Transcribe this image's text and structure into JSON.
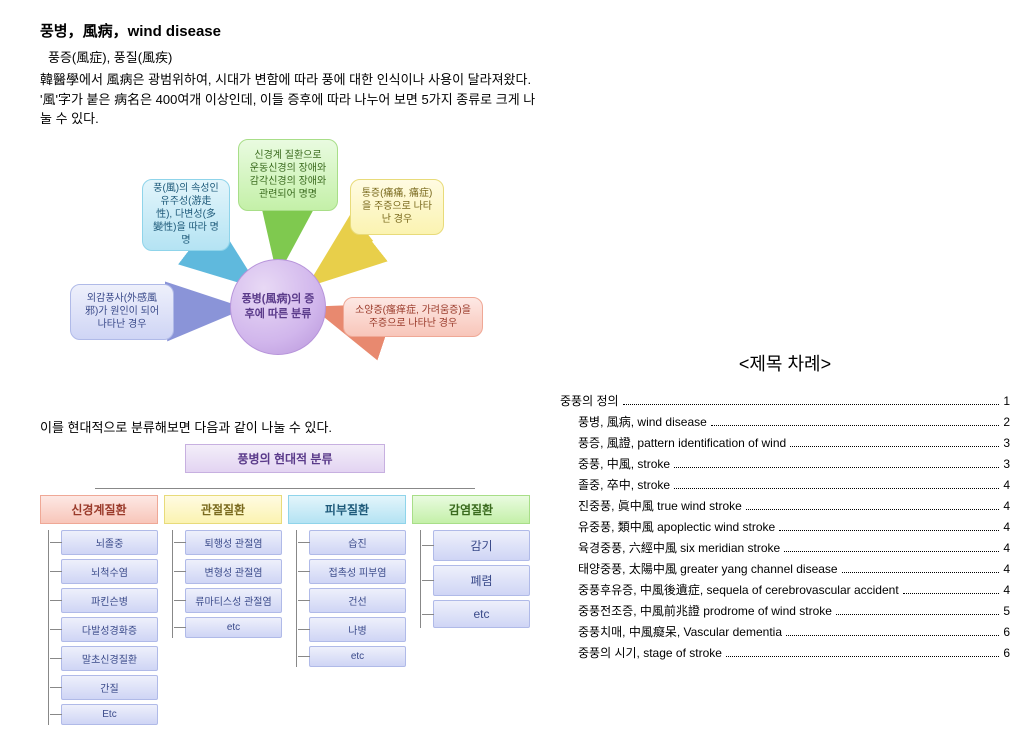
{
  "header": {
    "title_main": "풍병，風病，wind disease",
    "title_sub": "풍증(風症), 풍질(風疾)",
    "paragraph": "韓醫學에서 風病은 광범위하여, 시대가 변함에 따라 풍에 대한 인식이나 사용이 달라져왔다. '風'字가 붙은 病名은 400여개 이상인데, 이들 증후에 따라 나누어 보면 5가지 종류로 크게 나눌 수 있다."
  },
  "radial": {
    "center": "풍병(風病)의 증후에 따른 분류",
    "boxes": {
      "top": "신경계 질환으로 운동신경의 장애와 감각신경의 장애와 관련되어 명명",
      "topleft": "풍(風)의 속성인 유주성(游走性), 다변성(多變性)을 따라 명명",
      "topright": "통증(痛痛, 痛症)을 주증으로 나타난 경우",
      "left": "외감풍사(外感風邪)가 원인이 되어 나타난 경우",
      "right": "소양증(瘙痒症, 가려움증)을 주증으로 나타난 경우"
    },
    "arrow_colors": {
      "top": "#7fc94f",
      "topleft": "#5fb9dd",
      "topright": "#e8cf4a",
      "left": "#8a94d8",
      "right": "#e8896f"
    }
  },
  "caption2": "이를 현대적으로 분류해보면 다음과 같이 나눌 수 있다.",
  "tree": {
    "root": "풍병의 현대적 분류",
    "cols": [
      {
        "head": "신경계질환",
        "head_class": "h-neuro",
        "items": [
          "뇌졸중",
          "뇌척수염",
          "파킨슨병",
          "다발성경화증",
          "말초신경질환",
          "간질",
          "Etc"
        ],
        "big": false
      },
      {
        "head": "관절질환",
        "head_class": "h-joint",
        "items": [
          "퇴행성 관절염",
          "변형성 관절염",
          "류마티스성 관절염",
          "etc"
        ],
        "big": false
      },
      {
        "head": "피부질환",
        "head_class": "h-skin",
        "items": [
          "습진",
          "접촉성 피부염",
          "건선",
          "나병",
          "etc"
        ],
        "big": false
      },
      {
        "head": "감염질환",
        "head_class": "h-infect",
        "items": [
          "감기",
          "폐렴",
          "etc"
        ],
        "big": true
      }
    ]
  },
  "toc": {
    "title": "<제목 차례>",
    "lines": [
      {
        "indent": 1,
        "label": "중풍의 정의",
        "page": "1"
      },
      {
        "indent": 2,
        "label": "풍병, 風病, wind disease",
        "page": "2"
      },
      {
        "indent": 2,
        "label": "풍증, 風證, pattern identification of wind",
        "page": "3"
      },
      {
        "indent": 2,
        "label": "중풍, 中風, stroke",
        "page": "3"
      },
      {
        "indent": 2,
        "label": "졸중, 卒中, stroke",
        "page": "4"
      },
      {
        "indent": 2,
        "label": "진중풍, 眞中風 true wind stroke",
        "page": "4"
      },
      {
        "indent": 2,
        "label": "유중풍, 類中風 apoplectic wind stroke",
        "page": "4"
      },
      {
        "indent": 2,
        "label": "육경중풍, 六經中風 six meridian stroke",
        "page": "4"
      },
      {
        "indent": 2,
        "label": "태양중풍, 太陽中風 greater yang channel disease",
        "page": "4"
      },
      {
        "indent": 2,
        "label": "중풍후유증, 中風後遺症, sequela of cerebrovascular accident",
        "page": "4"
      },
      {
        "indent": 2,
        "label": "중풍전조증, 中風前兆證 prodrome of wind stroke",
        "page": "5"
      },
      {
        "indent": 2,
        "label": "중풍치매, 中風癡呆, Vascular dementia",
        "page": "6"
      },
      {
        "indent": 2,
        "label": "중풍의 시기, stage of stroke",
        "page": "6"
      }
    ]
  }
}
